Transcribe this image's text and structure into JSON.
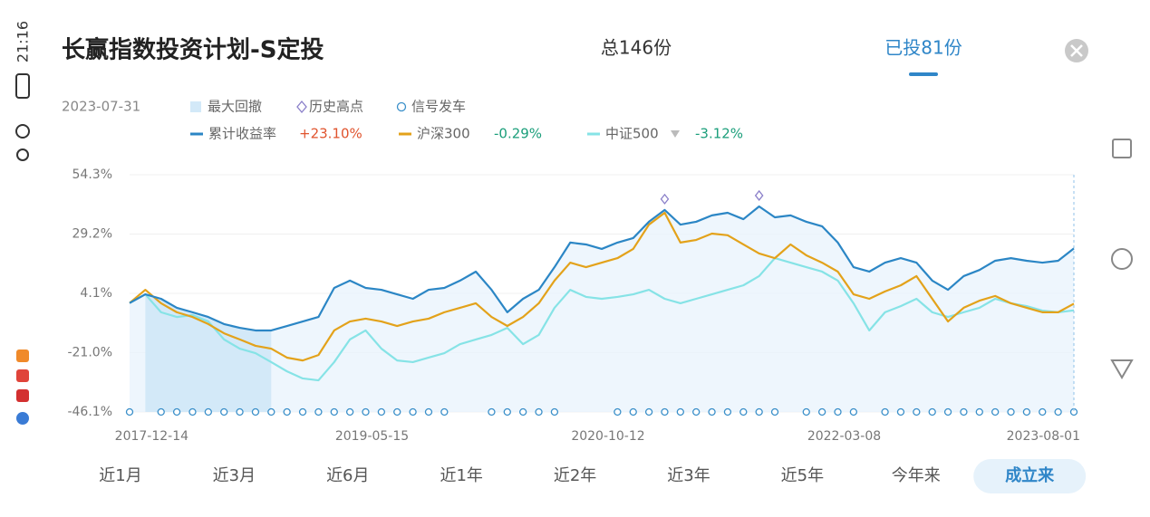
{
  "status_bar": {
    "time": "21:16"
  },
  "header": {
    "title": "长赢指数投资计划-S定投",
    "total": "总146份",
    "invested": "已投81份"
  },
  "chart_data": {
    "type": "line",
    "date": "2023-07-31",
    "categories": [
      null,
      "2017-12-14",
      null,
      null,
      null,
      null,
      null,
      null,
      null,
      null,
      null,
      null,
      null,
      null,
      null,
      "2019-05-15",
      null,
      null,
      null,
      null,
      null,
      null,
      null,
      null,
      null,
      null,
      null,
      null,
      null,
      null,
      "2020-10-12",
      null,
      null,
      null,
      null,
      null,
      null,
      null,
      null,
      null,
      null,
      null,
      null,
      null,
      null,
      "2022-03-08",
      null,
      null,
      null,
      null,
      null,
      null,
      null,
      null,
      null,
      null,
      null,
      null,
      null,
      null,
      "2023-08-01"
    ],
    "series": [
      {
        "name": "累计收益率",
        "color": "#2b86c5",
        "change": "+23.10%",
        "change_color": "#e0532d",
        "values": [
          0,
          3.7,
          1.8,
          -2.0,
          -3.9,
          -5.9,
          -8.9,
          -10.5,
          -11.6,
          -11.6,
          -9.7,
          -7.8,
          -5.9,
          6.4,
          9.5,
          6.4,
          5.6,
          3.7,
          1.8,
          5.6,
          6.4,
          9.5,
          13.3,
          5.6,
          -3.9,
          1.8,
          5.6,
          15.2,
          25.6,
          24.8,
          22.9,
          25.6,
          27.5,
          34.4,
          39.4,
          33.2,
          34.4,
          37.1,
          38.2,
          35.5,
          40.9,
          36.3,
          37.1,
          34.4,
          32.5,
          25.6,
          15.2,
          13.3,
          17.1,
          19.0,
          17.1,
          9.5,
          5.6,
          11.4,
          14.0,
          17.9,
          19.0,
          17.9,
          17.1,
          17.9,
          23.1
        ]
      },
      {
        "name": "沪深300",
        "color": "#e3a21a",
        "change": "-0.29%",
        "change_color": "#1a9e7a",
        "values": [
          0,
          5.6,
          -0.1,
          -3.9,
          -5.9,
          -8.9,
          -12.8,
          -15.4,
          -18.1,
          -19.3,
          -23.1,
          -24.3,
          -22.0,
          -11.6,
          -7.8,
          -6.6,
          -7.8,
          -9.7,
          -7.8,
          -6.6,
          -3.9,
          -2.0,
          -0.1,
          -5.9,
          -9.7,
          -5.9,
          -0.1,
          9.5,
          17.1,
          15.2,
          17.1,
          19.0,
          22.9,
          33.2,
          38.2,
          25.6,
          26.7,
          29.4,
          28.7,
          24.8,
          21.0,
          19.0,
          24.8,
          20.2,
          17.1,
          13.3,
          3.7,
          1.8,
          4.9,
          7.5,
          11.4,
          1.8,
          -7.8,
          -2.0,
          1.0,
          3.0,
          -0.1,
          -2.0,
          -3.9,
          -3.9,
          -0.29
        ]
      },
      {
        "name": "中证500",
        "color": "#86e3e6",
        "change": "-3.12%",
        "change_color": "#1a9e7a",
        "values": [
          0,
          3.7,
          -3.9,
          -5.9,
          -5.1,
          -7.8,
          -15.4,
          -19.3,
          -21.2,
          -25.0,
          -28.9,
          -31.9,
          -32.7,
          -25.0,
          -15.4,
          -11.6,
          -19.3,
          -24.3,
          -25.0,
          -23.1,
          -21.2,
          -17.4,
          -15.4,
          -13.5,
          -10.5,
          -17.4,
          -13.5,
          -2.0,
          5.6,
          2.6,
          1.8,
          2.6,
          3.7,
          5.6,
          1.8,
          -0.1,
          1.8,
          3.7,
          5.6,
          7.5,
          11.4,
          19.0,
          17.1,
          15.2,
          13.3,
          9.5,
          -0.1,
          -11.6,
          -3.9,
          -1.3,
          1.8,
          -3.9,
          -5.9,
          -3.9,
          -2.0,
          1.8,
          -0.1,
          -1.3,
          -3.2,
          -3.9,
          -3.12
        ]
      }
    ],
    "ylim": [
      -46.1,
      54.3
    ],
    "yticks": [
      {
        "value": -46.1,
        "label": "-46.1%"
      },
      {
        "value": -21.0,
        "label": "-21.0%"
      },
      {
        "value": 4.1,
        "label": "4.1%"
      },
      {
        "value": 29.2,
        "label": "29.2%"
      },
      {
        "value": 54.3,
        "label": "54.3%"
      }
    ],
    "grid": true,
    "drawdown": {
      "name": "最大回撤",
      "color": "#d3e9f8",
      "from": 1,
      "to": 9
    },
    "highs": {
      "name": "历史高点",
      "color": "#8a7fc9",
      "at": [
        34,
        40
      ]
    },
    "signals": {
      "name": "信号发车",
      "color": "#3a8fc9",
      "at": [
        0,
        2,
        3,
        4,
        5,
        6,
        7,
        8,
        9,
        10,
        11,
        12,
        13,
        14,
        15,
        16,
        17,
        18,
        19,
        20,
        23,
        24,
        25,
        26,
        27,
        31,
        32,
        33,
        34,
        35,
        36,
        37,
        38,
        39,
        40,
        41,
        43,
        44,
        45,
        46,
        48,
        49,
        50,
        51,
        52,
        53,
        54,
        55,
        56,
        57,
        58,
        59,
        60
      ]
    }
  },
  "tabs": [
    "近1月",
    "近3月",
    "近6月",
    "近1年",
    "近2年",
    "近3年",
    "近5年",
    "今年来",
    "成立来"
  ],
  "selected_tab": 8
}
